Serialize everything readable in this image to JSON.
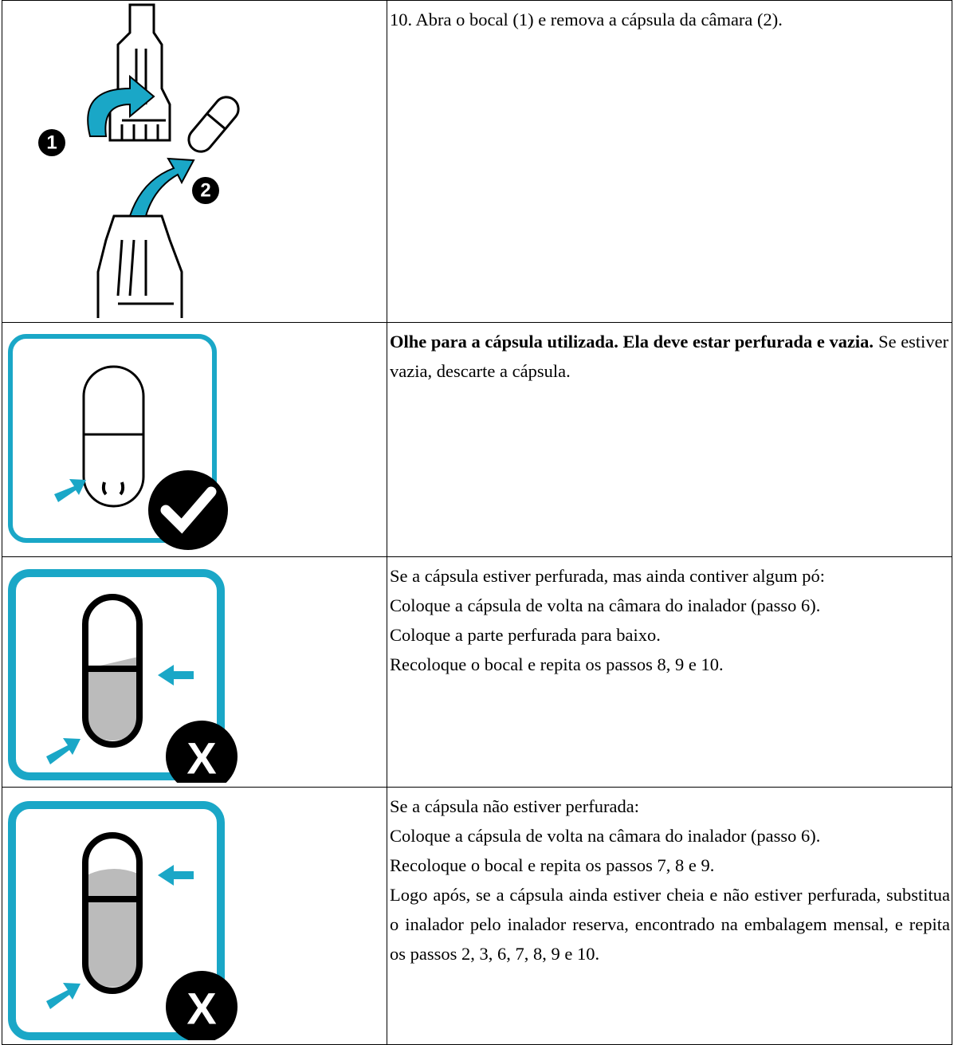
{
  "table": {
    "rows": [
      {
        "figure_labels": [
          "1",
          "2"
        ],
        "paragraphs": [
          "10. Abra o bocal (1) e remova a cápsula da câmara (2)."
        ]
      },
      {
        "bold": "Olhe para a cápsula utilizada. Ela deve estar perfurada e vazia.",
        "text": "Se estiver vazia, descarte a cápsula."
      },
      {
        "figure_label": "X",
        "paragraphs": [
          "Se a cápsula estiver perfurada, mas ainda contiver algum pó:",
          "Coloque a cápsula de volta na câmara do inalador (passo 6).",
          "Coloque a parte perfurada para baixo.",
          "Recoloque o bocal e repita os passos 8, 9 e 10."
        ]
      },
      {
        "figure_label": "X",
        "paragraphs": [
          "Se a cápsula não estiver perfurada:",
          "Coloque a cápsula de volta na câmara do inalador (passo 6).",
          "Recoloque o bocal e repita os passos 7, 8 e 9.",
          "Logo após, se a cápsula ainda estiver cheia e não estiver perfurada, substitua o inalador pelo inalador reserva, encontrado na embalagem mensal, e repita os passos 2, 3, 6, 7, 8, 9 e 10."
        ]
      }
    ]
  }
}
